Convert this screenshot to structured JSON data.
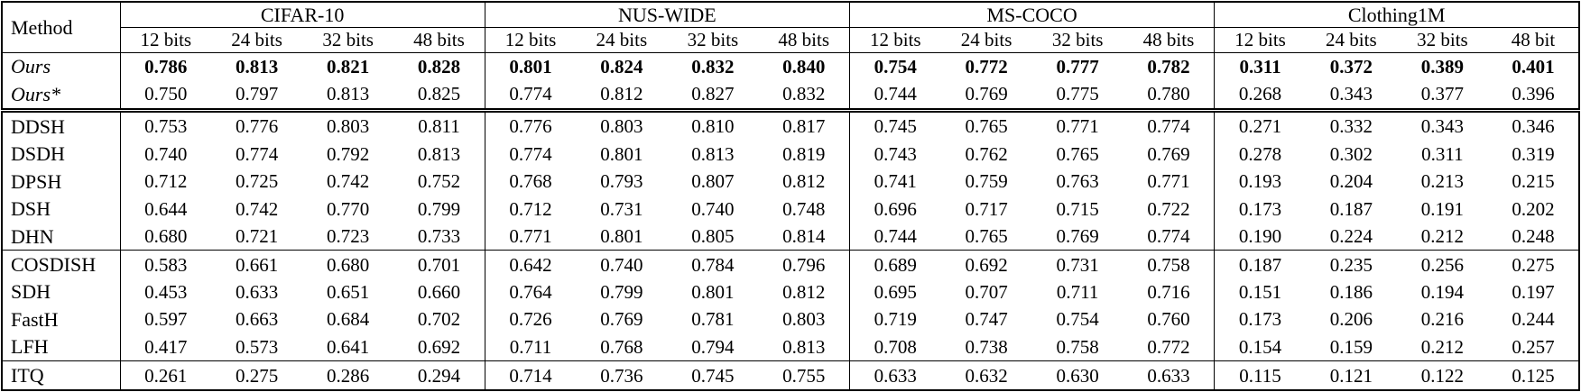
{
  "table": {
    "method_header": "Method",
    "groups": [
      {
        "name": "CIFAR-10",
        "bits": [
          "12 bits",
          "24 bits",
          "32 bits",
          "48 bits"
        ]
      },
      {
        "name": "NUS-WIDE",
        "bits": [
          "12 bits",
          "24 bits",
          "32 bits",
          "48 bits"
        ]
      },
      {
        "name": "MS-COCO",
        "bits": [
          "12 bits",
          "24 bits",
          "32 bits",
          "48 bits"
        ]
      },
      {
        "name": "Clothing1M",
        "bits": [
          "12 bits",
          "24 bits",
          "32 bits",
          "48 bit"
        ]
      }
    ],
    "row_groups": [
      {
        "separator": "none",
        "rows": [
          {
            "method": "Ours",
            "italic": true,
            "bold_values": true,
            "values": [
              "0.786",
              "0.813",
              "0.821",
              "0.828",
              "0.801",
              "0.824",
              "0.832",
              "0.840",
              "0.754",
              "0.772",
              "0.777",
              "0.782",
              "0.311",
              "0.372",
              "0.389",
              "0.401"
            ]
          },
          {
            "method": "Ours*",
            "italic": true,
            "bold_values": false,
            "values": [
              "0.750",
              "0.797",
              "0.813",
              "0.825",
              "0.774",
              "0.812",
              "0.827",
              "0.832",
              "0.744",
              "0.769",
              "0.775",
              "0.780",
              "0.268",
              "0.343",
              "0.377",
              "0.396"
            ]
          }
        ]
      },
      {
        "separator": "double",
        "rows": [
          {
            "method": "DDSH",
            "italic": false,
            "bold_values": false,
            "values": [
              "0.753",
              "0.776",
              "0.803",
              "0.811",
              "0.776",
              "0.803",
              "0.810",
              "0.817",
              "0.745",
              "0.765",
              "0.771",
              "0.774",
              "0.271",
              "0.332",
              "0.343",
              "0.346"
            ]
          },
          {
            "method": "DSDH",
            "italic": false,
            "bold_values": false,
            "values": [
              "0.740",
              "0.774",
              "0.792",
              "0.813",
              "0.774",
              "0.801",
              "0.813",
              "0.819",
              "0.743",
              "0.762",
              "0.765",
              "0.769",
              "0.278",
              "0.302",
              "0.311",
              "0.319"
            ]
          },
          {
            "method": "DPSH",
            "italic": false,
            "bold_values": false,
            "values": [
              "0.712",
              "0.725",
              "0.742",
              "0.752",
              "0.768",
              "0.793",
              "0.807",
              "0.812",
              "0.741",
              "0.759",
              "0.763",
              "0.771",
              "0.193",
              "0.204",
              "0.213",
              "0.215"
            ]
          },
          {
            "method": "DSH",
            "italic": false,
            "bold_values": false,
            "values": [
              "0.644",
              "0.742",
              "0.770",
              "0.799",
              "0.712",
              "0.731",
              "0.740",
              "0.748",
              "0.696",
              "0.717",
              "0.715",
              "0.722",
              "0.173",
              "0.187",
              "0.191",
              "0.202"
            ]
          },
          {
            "method": "DHN",
            "italic": false,
            "bold_values": false,
            "values": [
              "0.680",
              "0.721",
              "0.723",
              "0.733",
              "0.771",
              "0.801",
              "0.805",
              "0.814",
              "0.744",
              "0.765",
              "0.769",
              "0.774",
              "0.190",
              "0.224",
              "0.212",
              "0.248"
            ]
          }
        ]
      },
      {
        "separator": "single",
        "rows": [
          {
            "method": "COSDISH",
            "italic": false,
            "bold_values": false,
            "values": [
              "0.583",
              "0.661",
              "0.680",
              "0.701",
              "0.642",
              "0.740",
              "0.784",
              "0.796",
              "0.689",
              "0.692",
              "0.731",
              "0.758",
              "0.187",
              "0.235",
              "0.256",
              "0.275"
            ]
          },
          {
            "method": "SDH",
            "italic": false,
            "bold_values": false,
            "values": [
              "0.453",
              "0.633",
              "0.651",
              "0.660",
              "0.764",
              "0.799",
              "0.801",
              "0.812",
              "0.695",
              "0.707",
              "0.711",
              "0.716",
              "0.151",
              "0.186",
              "0.194",
              "0.197"
            ]
          },
          {
            "method": "FastH",
            "italic": false,
            "bold_values": false,
            "values": [
              "0.597",
              "0.663",
              "0.684",
              "0.702",
              "0.726",
              "0.769",
              "0.781",
              "0.803",
              "0.719",
              "0.747",
              "0.754",
              "0.760",
              "0.173",
              "0.206",
              "0.216",
              "0.244"
            ]
          },
          {
            "method": "LFH",
            "italic": false,
            "bold_values": false,
            "values": [
              "0.417",
              "0.573",
              "0.641",
              "0.692",
              "0.711",
              "0.768",
              "0.794",
              "0.813",
              "0.708",
              "0.738",
              "0.758",
              "0.772",
              "0.154",
              "0.159",
              "0.212",
              "0.257"
            ]
          }
        ]
      },
      {
        "separator": "single",
        "rows": [
          {
            "method": "ITQ",
            "italic": false,
            "bold_values": false,
            "values": [
              "0.261",
              "0.275",
              "0.286",
              "0.294",
              "0.714",
              "0.736",
              "0.745",
              "0.755",
              "0.633",
              "0.632",
              "0.630",
              "0.633",
              "0.115",
              "0.121",
              "0.122",
              "0.125"
            ]
          }
        ]
      }
    ]
  }
}
